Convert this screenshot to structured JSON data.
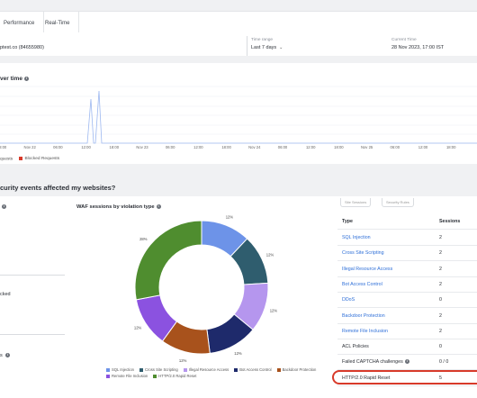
{
  "tabs": {
    "performance": "Performance",
    "realtime": "Real-Time"
  },
  "info": {
    "domain": "ptest.co (84655980)",
    "time_range_label": "Time range",
    "time_range_value": "Last 7 days",
    "current_time_label": "Current Time",
    "current_time_value": "28 Nov 2023, 17:00 IST"
  },
  "traffic_chart": {
    "title": "ver time",
    "x_ticks": [
      "18:00",
      "Nov 22",
      "06:00",
      "12:00",
      "18:00",
      "Nov 23",
      "06:00",
      "12:00",
      "18:00",
      "Nov 24",
      "06:00",
      "12:00",
      "18:00",
      "Nov 25",
      "06:00",
      "12:00",
      "18:00"
    ],
    "legend": {
      "series1": "quests",
      "series2": "Blocked Requests"
    },
    "colors": {
      "line": "#9db8f0",
      "blocked": "#d83a2a"
    }
  },
  "chart_data": {
    "type": "line",
    "title": "",
    "xlabel": "",
    "ylabel": "",
    "x": [
      0,
      1,
      2,
      3,
      4,
      5,
      6,
      7,
      8,
      9,
      10,
      11,
      12,
      13,
      14,
      15,
      16,
      17,
      18,
      19,
      20,
      21,
      22,
      23,
      24,
      25,
      26,
      27,
      28,
      29,
      30,
      31,
      32,
      33,
      34,
      35,
      36,
      37,
      38,
      39,
      40,
      41,
      42,
      43,
      44,
      45,
      46,
      47,
      48,
      49,
      50,
      51,
      52,
      53,
      54,
      55,
      56,
      57,
      58,
      59,
      60,
      61,
      62,
      63,
      64,
      65,
      66,
      67,
      68,
      69,
      70,
      71,
      72,
      73,
      74,
      75,
      76,
      77,
      78,
      79,
      80
    ],
    "series": [
      {
        "values": [
          0,
          0,
          0,
          0,
          0,
          0,
          0,
          0,
          0,
          0,
          0,
          0,
          0,
          0,
          0,
          0,
          0,
          0,
          0,
          0,
          0,
          0,
          0,
          0,
          0,
          0,
          0,
          0,
          0,
          0,
          0,
          0,
          0,
          0,
          0,
          0,
          0,
          0,
          0,
          0,
          0,
          0,
          0,
          0,
          0,
          0,
          0,
          0,
          0,
          0,
          0,
          0,
          0,
          0,
          0,
          0,
          0,
          0,
          0,
          0,
          0,
          0,
          0,
          0,
          0,
          0,
          0,
          0,
          0,
          0,
          0,
          0,
          0,
          0,
          0,
          0,
          0,
          0,
          0,
          0,
          0
        ]
      }
    ]
  },
  "section_question": "curity events affected my websites?",
  "left_col": {
    "label_1": "cked",
    "label_2": "s"
  },
  "waf": {
    "title": "WAF sessions by violation type",
    "slices": [
      {
        "name": "SQL Injection",
        "value": 12,
        "label": "12%",
        "color": "#6d93e8"
      },
      {
        "name": "Cross Site Scripting",
        "value": 12,
        "label": "12%",
        "color": "#2f5d6e"
      },
      {
        "name": "Illegal Resource Access",
        "value": 12,
        "label": "12%",
        "color": "#b596ee"
      },
      {
        "name": "Bot Access Control",
        "value": 12,
        "label": "12%",
        "color": "#1e2a6b"
      },
      {
        "name": "Backdoor Protection",
        "value": 12,
        "label": "12%",
        "color": "#a8521c"
      },
      {
        "name": "Remote File Inclusion",
        "value": 12,
        "label": "12%",
        "color": "#8b52e0"
      },
      {
        "name": "HTTP/2.0 Rapid Reset",
        "value": 28,
        "label": "28%",
        "color": "#4f8d2f"
      }
    ]
  },
  "sessions_table": {
    "buttons": [
      "Site Sessions",
      "Security Rules"
    ],
    "header": {
      "type": "Type",
      "sessions": "Sessions"
    },
    "rows": [
      {
        "type": "SQL Injection",
        "sessions": "2",
        "link": true
      },
      {
        "type": "Cross Site Scripting",
        "sessions": "2",
        "link": true
      },
      {
        "type": "Illegal Resource Access",
        "sessions": "2",
        "link": true
      },
      {
        "type": "Bot Access Control",
        "sessions": "2",
        "link": true
      },
      {
        "type": "DDoS",
        "sessions": "0",
        "link": true
      },
      {
        "type": "Backdoor Protection",
        "sessions": "2",
        "link": true
      },
      {
        "type": "Remote File Inclusion",
        "sessions": "2",
        "link": true
      },
      {
        "type": "ACL Policies",
        "sessions": "0",
        "link": false
      },
      {
        "type": "Failed CAPTCHA challenges",
        "sessions": "0 / 0",
        "link": false,
        "info": true
      },
      {
        "type": "HTTP/2.0 Rapid Reset",
        "sessions": "5",
        "link": false
      }
    ]
  }
}
